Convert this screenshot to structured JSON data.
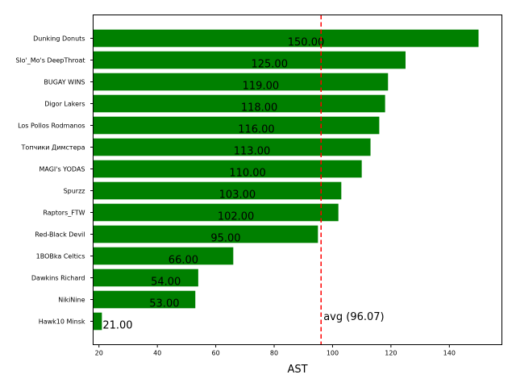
{
  "chart_data": {
    "type": "bar",
    "orientation": "horizontal",
    "categories": [
      "Dunking Donuts",
      "Slo'_Mo's DeepThroat",
      "BUGAY WINS",
      "Digor Lakers",
      "Los Pollos Rodmanos",
      "Топчики Димстера",
      "MAGI's YODAS",
      "Spurzz",
      "Raptors_FTW",
      "Red-Black Devil",
      "1BOBka Celtics",
      "Dawkins Richard",
      "NikiNine",
      "Hawk10 Minsk"
    ],
    "values": [
      150,
      125,
      119,
      118,
      116,
      113,
      110,
      103,
      102,
      95,
      66,
      54,
      53,
      21
    ],
    "data_labels": [
      "150.00",
      "125.00",
      "119.00",
      "118.00",
      "116.00",
      "113.00",
      "110.00",
      "103.00",
      "102.00",
      "95.00",
      "66.00",
      "54.00",
      "53.00",
      "21.00"
    ],
    "xlabel": "AST",
    "xlim": [
      18,
      158
    ],
    "xticks": [
      20,
      40,
      60,
      80,
      100,
      120,
      140
    ],
    "reference_line": {
      "value": 96.07,
      "label": "avg (96.07)",
      "style": "dashed",
      "color": "#ff0000"
    },
    "bar_color": "#008000",
    "grid": false
  }
}
